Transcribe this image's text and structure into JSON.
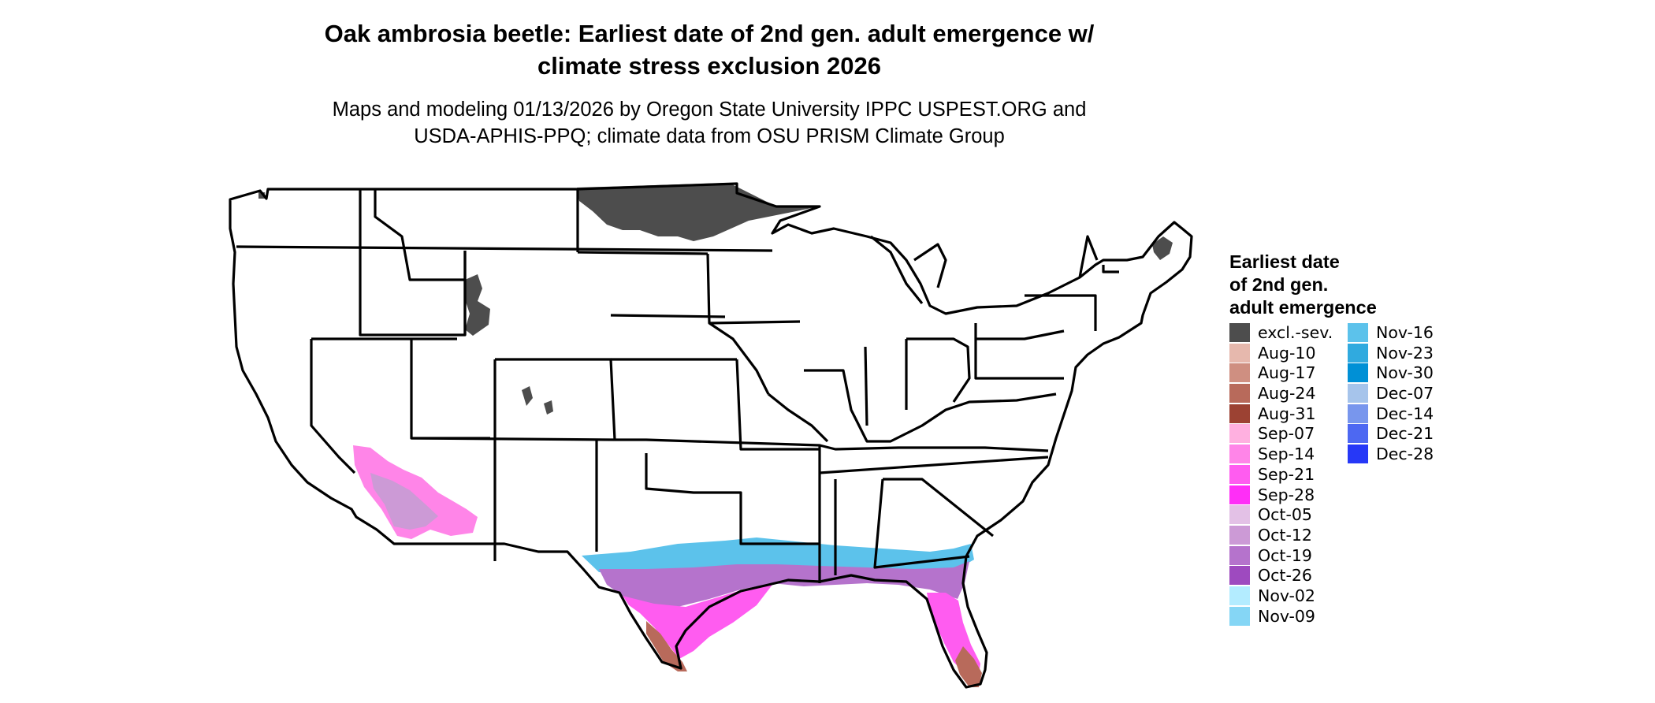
{
  "title_line1": "Oak ambrosia beetle: Earliest date of 2nd gen. adult emergence w/",
  "title_line2": "climate stress exclusion 2026",
  "subtitle_line1": "Maps and modeling 01/13/2026 by Oregon State University IPPC USPEST.ORG and",
  "subtitle_line2": "USDA-APHIS-PPQ; climate data from OSU PRISM Climate Group",
  "legend": {
    "title_line1": "Earliest date",
    "title_line2": "of 2nd gen.",
    "title_line3": "adult emergence",
    "column1": [
      {
        "label": "excl.-sev.",
        "color": "#4d4d4d"
      },
      {
        "label": "Aug-10",
        "color": "#e6b8ad"
      },
      {
        "label": "Aug-17",
        "color": "#cf8f81"
      },
      {
        "label": "Aug-24",
        "color": "#b86a5b"
      },
      {
        "label": "Aug-31",
        "color": "#9c4233"
      },
      {
        "label": "Sep-07",
        "color": "#ffb0e0"
      },
      {
        "label": "Sep-14",
        "color": "#ff85e8"
      },
      {
        "label": "Sep-21",
        "color": "#ff5cf0"
      },
      {
        "label": "Sep-28",
        "color": "#ff2ef7"
      },
      {
        "label": "Oct-05",
        "color": "#e3c1e6"
      },
      {
        "label": "Oct-12",
        "color": "#cc9ad6"
      },
      {
        "label": "Oct-19",
        "color": "#b573cc"
      },
      {
        "label": "Oct-26",
        "color": "#9e4abf"
      },
      {
        "label": "Nov-02",
        "color": "#b3ecff"
      },
      {
        "label": "Nov-09",
        "color": "#85d6f5"
      }
    ],
    "column2": [
      {
        "label": "Nov-16",
        "color": "#5cc2eb"
      },
      {
        "label": "Nov-23",
        "color": "#30aadf"
      },
      {
        "label": "Nov-30",
        "color": "#0090d6"
      },
      {
        "label": "Dec-07",
        "color": "#a6c4eb"
      },
      {
        "label": "Dec-14",
        "color": "#7896ed"
      },
      {
        "label": "Dec-21",
        "color": "#4d68f2"
      },
      {
        "label": "Dec-28",
        "color": "#2638f7"
      }
    ]
  }
}
